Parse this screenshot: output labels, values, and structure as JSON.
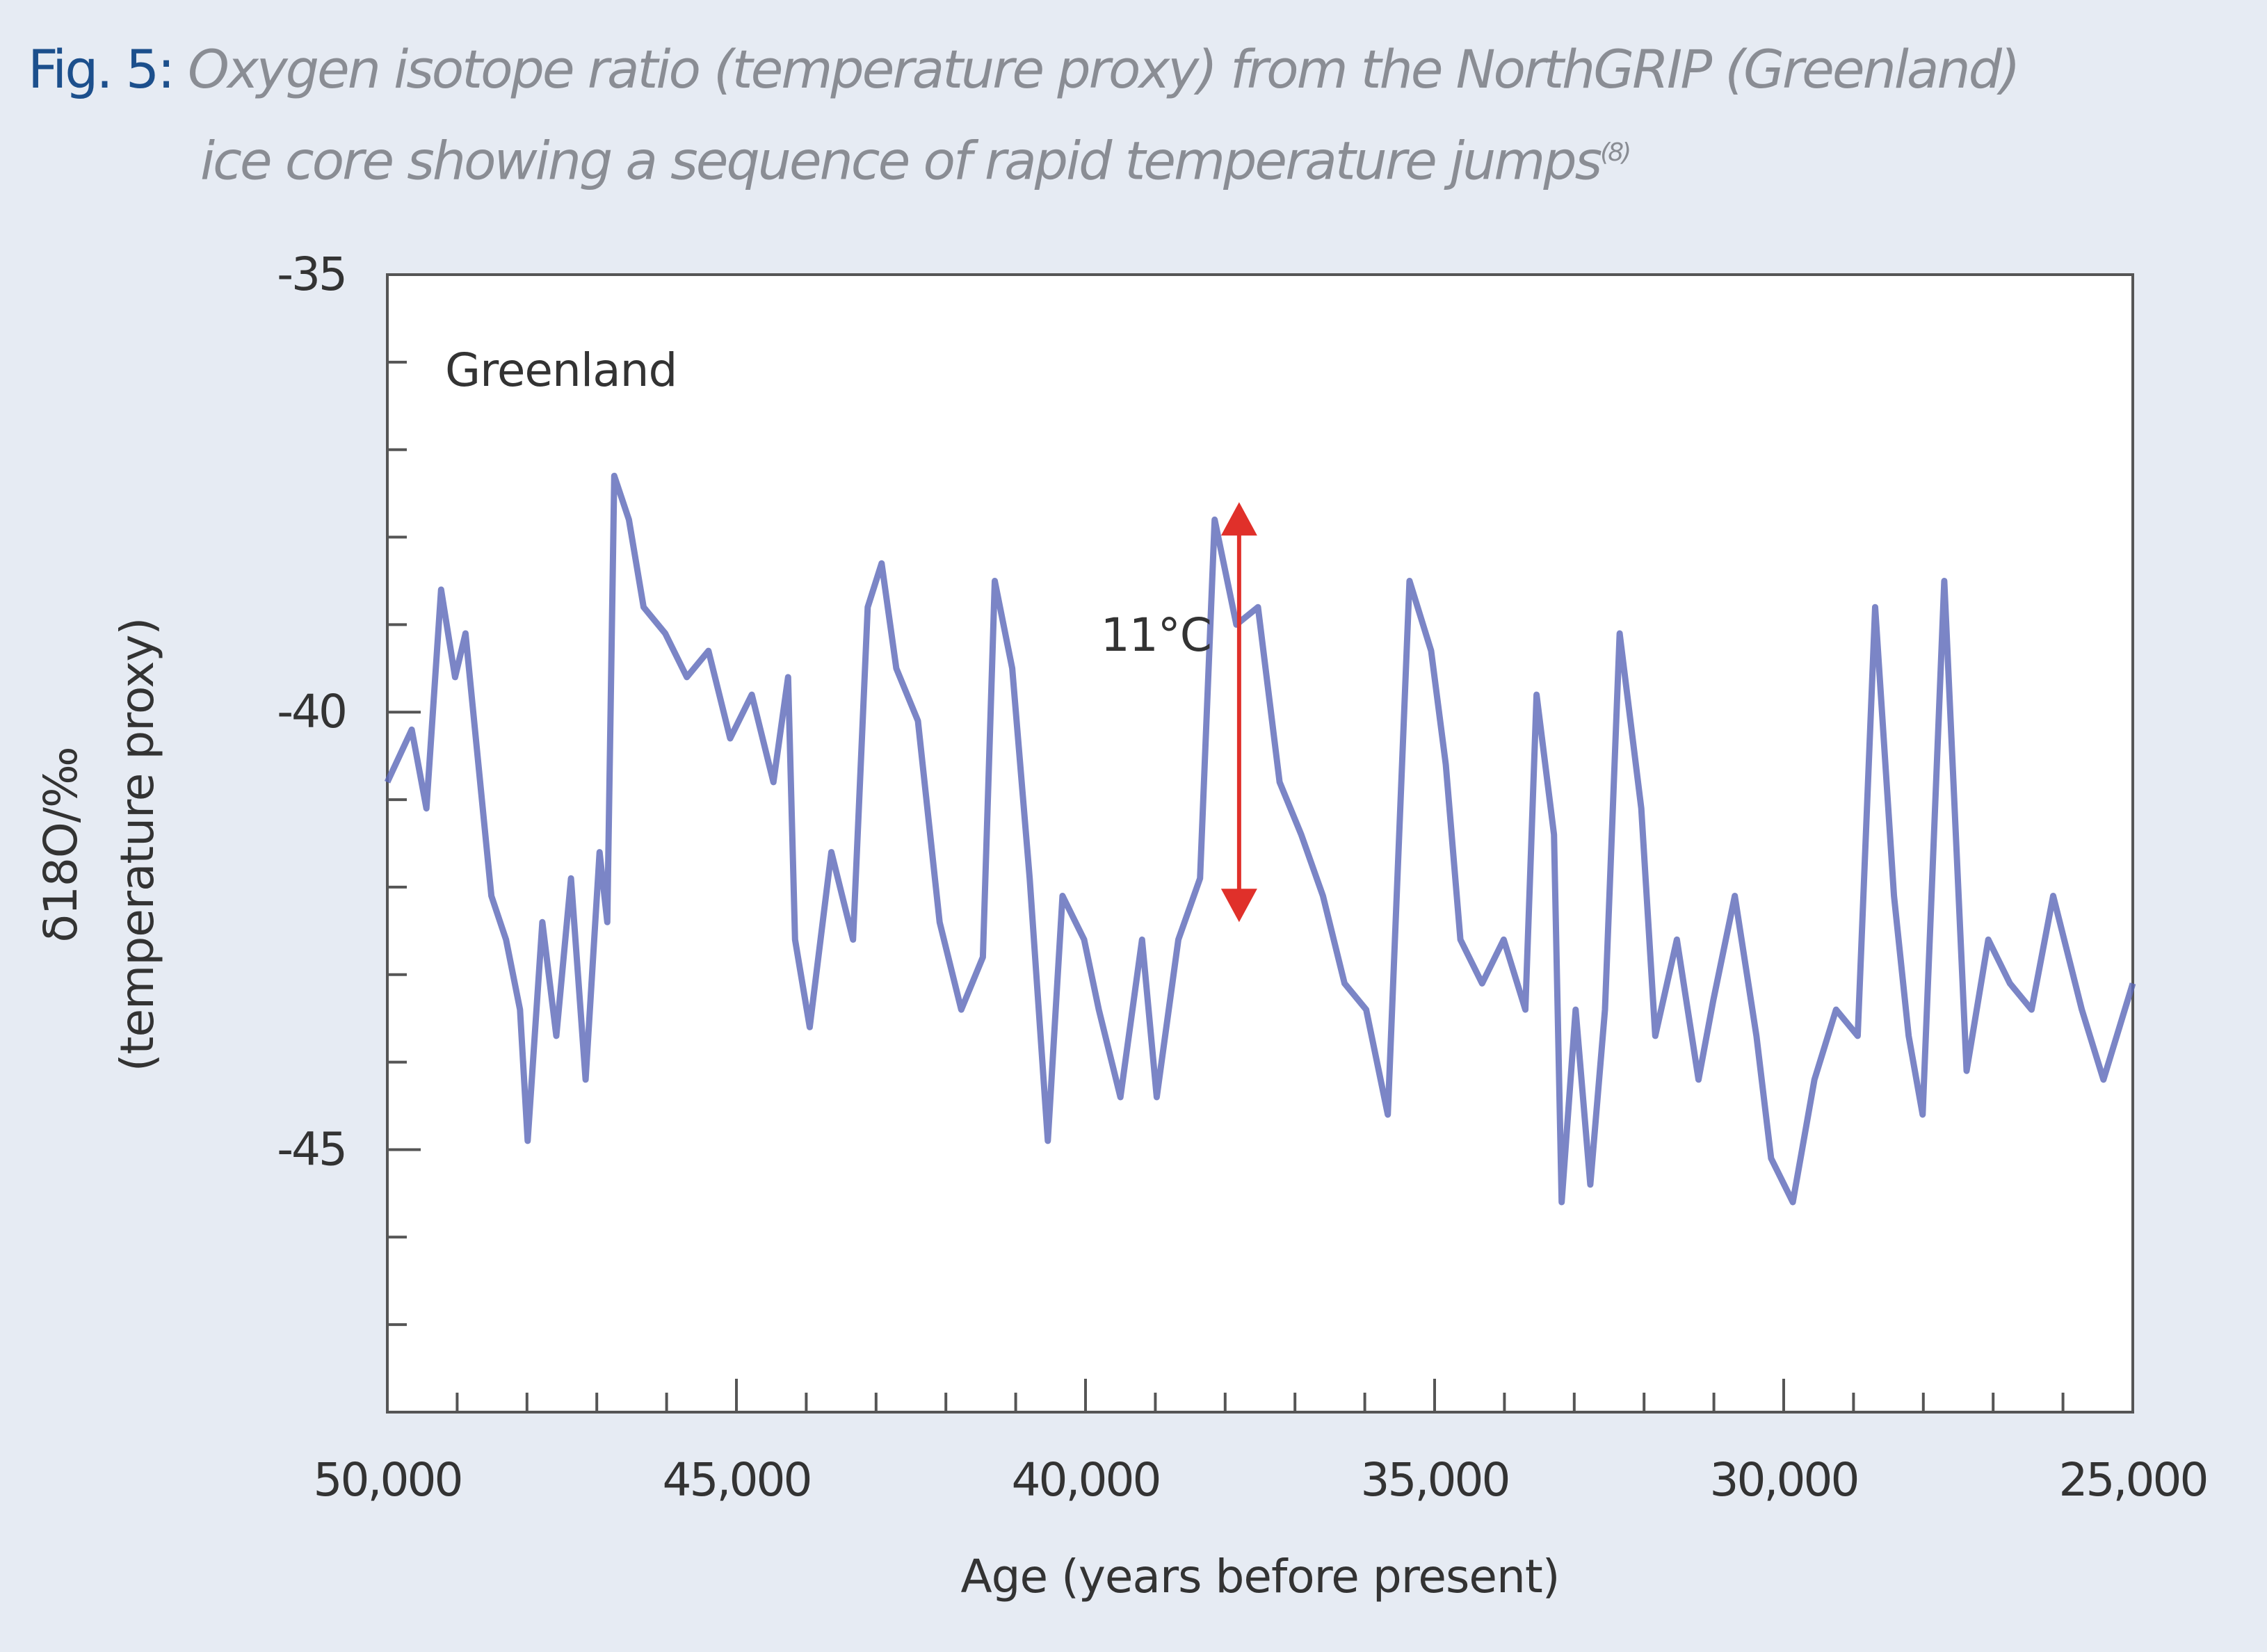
{
  "caption": {
    "fig_label": "Fig. 5:",
    "line1": "Oxygen isotope ratio (temperature proxy) from the NorthGRIP (Greenland)",
    "line2": "ice core showing a sequence of rapid temperature jumps",
    "ref": "(8)"
  },
  "chart_data": {
    "type": "line",
    "title": "Greenland",
    "xlabel": "Age (years before present)",
    "ylabel_line1": "δ18O/‰",
    "ylabel_line2": "(temperature proxy)",
    "xlim": [
      50000,
      25000
    ],
    "ylim": [
      -48,
      -35
    ],
    "x_ticks": [
      50000,
      45000,
      40000,
      35000,
      30000,
      25000
    ],
    "x_tick_labels": [
      "50,000",
      "45,000",
      "40,000",
      "35,000",
      "30,000",
      "25,000"
    ],
    "y_ticks": [
      -35,
      -40,
      -45
    ],
    "y_tick_labels": [
      "-35",
      "-40",
      "-45"
    ],
    "series_color": "#5a66b8",
    "annotation": {
      "label": "11°C",
      "age": 37800,
      "from": -42.4,
      "to": -37.6,
      "color": "#e0302a"
    },
    "series": [
      {
        "name": "NorthGRIP δ18O",
        "x": [
          50000,
          49650,
          49440,
          49230,
          49030,
          48880,
          48720,
          48510,
          48300,
          48100,
          47990,
          47780,
          47580,
          47370,
          47160,
          46960,
          46850,
          46750,
          46540,
          46330,
          46020,
          45710,
          45400,
          45090,
          44780,
          44470,
          44260,
          44160,
          43950,
          43640,
          43330,
          43120,
          42920,
          42710,
          42400,
          42090,
          41780,
          41470,
          41300,
          41050,
          40800,
          40540,
          40330,
          40020,
          39810,
          39500,
          39190,
          38980,
          38670,
          38360,
          38150,
          37840,
          37530,
          37220,
          36910,
          36600,
          36290,
          35980,
          35670,
          35360,
          35050,
          34840,
          34630,
          34320,
          34010,
          33700,
          33540,
          33290,
          33180,
          32980,
          32770,
          32560,
          32350,
          32040,
          31840,
          31530,
          31220,
          31010,
          30700,
          30390,
          30180,
          29870,
          29560,
          29250,
          28940,
          28690,
          28420,
          28210,
          28010,
          27700,
          27380,
          27070,
          26760,
          26450,
          26140,
          25730,
          25420,
          25000
        ],
        "y": [
          -40.8,
          -40.2,
          -41.1,
          -38.6,
          -39.6,
          -39.1,
          -40.4,
          -42.1,
          -42.6,
          -43.4,
          -44.9,
          -42.4,
          -43.7,
          -41.9,
          -44.2,
          -41.6,
          -42.4,
          -37.3,
          -37.8,
          -38.8,
          -39.1,
          -39.6,
          -39.3,
          -40.3,
          -39.8,
          -40.8,
          -39.6,
          -42.6,
          -43.6,
          -41.6,
          -42.6,
          -38.8,
          -38.3,
          -39.5,
          -40.1,
          -42.4,
          -43.4,
          -42.8,
          -38.5,
          -39.5,
          -41.9,
          -44.9,
          -42.1,
          -42.6,
          -43.4,
          -44.4,
          -42.6,
          -44.4,
          -42.6,
          -41.9,
          -37.8,
          -39.0,
          -38.8,
          -40.8,
          -41.4,
          -42.1,
          -43.1,
          -43.4,
          -44.6,
          -38.5,
          -39.3,
          -40.6,
          -42.6,
          -43.1,
          -42.6,
          -43.4,
          -39.8,
          -41.4,
          -45.6,
          -43.4,
          -45.4,
          -43.4,
          -39.1,
          -41.1,
          -43.7,
          -42.6,
          -44.2,
          -43.3,
          -42.1,
          -43.7,
          -45.1,
          -45.6,
          -44.2,
          -43.4,
          -43.7,
          -38.8,
          -42.1,
          -43.7,
          -44.6,
          -38.5,
          -44.1,
          -42.6,
          -43.1,
          -43.4,
          -42.1,
          -43.4,
          -44.2,
          -43.1
        ]
      }
    ]
  }
}
